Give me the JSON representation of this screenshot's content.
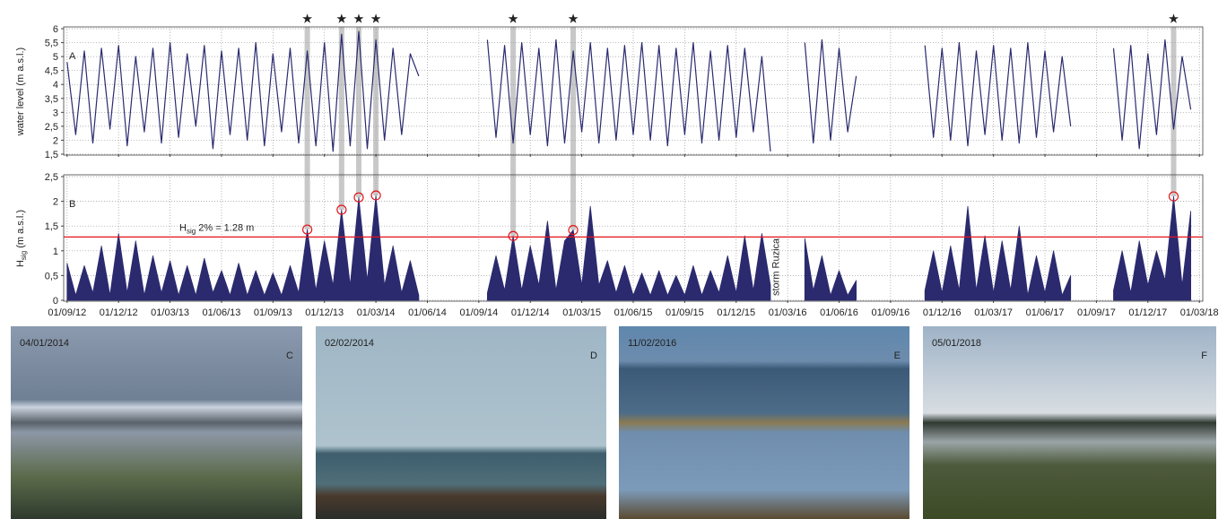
{
  "chart_data": [
    {
      "type": "line",
      "panel_label": "A",
      "ylabel": "water level (m a.s.l.)",
      "color": "#2b2a6f",
      "grid": true,
      "xlim": [
        -0.2,
        66.2
      ],
      "xticks": [
        0,
        3,
        6,
        9,
        12,
        15,
        18,
        21,
        24,
        27,
        30,
        33,
        36,
        39,
        42,
        45,
        48,
        51,
        54,
        57,
        60,
        63,
        66
      ],
      "ylim": [
        1.5,
        6
      ],
      "yticks": [
        {
          "value": 1.5,
          "label": "1,5"
        },
        2,
        {
          "value": 2.5,
          "label": "2,5"
        },
        3,
        {
          "value": 3.5,
          "label": "3,5"
        },
        4,
        {
          "value": 4.5,
          "label": "4,5"
        },
        5,
        {
          "value": 5.5,
          "label": "5,5"
        },
        6
      ],
      "x": [
        0,
        0.5,
        1,
        1.5,
        2,
        2.5,
        3,
        3.5,
        4,
        4.5,
        5,
        5.5,
        6,
        6.5,
        7,
        7.5,
        8,
        8.5,
        9,
        9.5,
        10,
        10.5,
        11,
        11.5,
        12,
        12.5,
        13,
        13.5,
        14,
        14.5,
        15,
        15.5,
        16,
        16.5,
        17,
        17.5,
        18,
        18.5,
        19,
        19.5,
        20,
        20.5,
        21,
        21.5,
        22,
        22.5,
        23,
        23.5,
        24,
        24.5,
        25,
        25.5,
        26,
        26.5,
        27,
        27.5,
        28,
        28.5,
        29,
        29.5,
        30,
        30.5,
        31,
        31.5,
        32,
        32.5,
        33,
        33.5,
        34,
        34.5,
        35,
        35.5,
        36,
        36.5,
        37,
        37.5,
        38,
        38.5,
        39,
        39.5,
        40,
        40.5,
        41,
        41.5,
        42,
        42.5,
        43,
        43.5,
        44,
        44.5,
        45,
        45.5,
        46,
        46.5,
        47,
        47.5,
        48,
        48.5,
        49,
        49.5,
        50,
        50.5,
        51,
        51.5,
        52,
        52.5,
        53,
        53.5,
        54,
        54.5,
        55,
        55.5,
        56,
        56.5,
        57,
        57.5,
        58,
        58.5,
        59,
        59.5,
        60,
        60.5,
        61,
        61.5,
        62,
        62.5,
        63,
        63.5,
        64,
        64.5,
        65,
        65.5
      ],
      "values": [
        4.8,
        2.2,
        5.2,
        1.9,
        5.3,
        2.4,
        5.4,
        1.8,
        5.0,
        2.3,
        5.3,
        1.9,
        5.5,
        2.1,
        5.1,
        2.5,
        5.4,
        1.7,
        5.2,
        2.2,
        5.3,
        2.0,
        5.5,
        1.8,
        5.1,
        2.3,
        5.3,
        1.9,
        5.2,
        1.8,
        5.5,
        1.6,
        5.8,
        1.8,
        5.9,
        1.7,
        5.6,
        2.0,
        5.3,
        2.2,
        5.1,
        4.3,
        null,
        null,
        null,
        null,
        null,
        null,
        null,
        5.6,
        2.1,
        5.4,
        1.9,
        5.5,
        2.2,
        5.3,
        1.8,
        5.6,
        1.9,
        5.2,
        2.3,
        5.5,
        1.9,
        5.3,
        2.0,
        5.4,
        2.2,
        5.5,
        2.0,
        5.4,
        1.8,
        5.3,
        2.2,
        5.5,
        1.9,
        5.2,
        2.0,
        5.4,
        2.1,
        5.3,
        2.3,
        5.0,
        1.6,
        null,
        null,
        null,
        5.5,
        1.9,
        5.6,
        2.0,
        5.3,
        2.3,
        4.3,
        null,
        null,
        null,
        null,
        null,
        null,
        null,
        5.4,
        2.1,
        5.3,
        2.0,
        5.5,
        1.8,
        5.2,
        2.2,
        5.4,
        2.0,
        5.3,
        1.9,
        5.5,
        2.1,
        5.2,
        2.3,
        5.0,
        2.5,
        null,
        null,
        null,
        null,
        5.3,
        2.0,
        5.4,
        1.7,
        5.1,
        2.2,
        5.6,
        2.4,
        5.0,
        3.1
      ]
    },
    {
      "type": "area",
      "panel_label": "B",
      "ylabel": {
        "main": "H",
        "sub": "sig",
        "rest": " (m a.s.l.)"
      },
      "color": "#2b2a6f",
      "grid": true,
      "xlim": [
        -0.2,
        66.2
      ],
      "xticks": [
        {
          "value": 0,
          "label": "01/09/12"
        },
        {
          "value": 3,
          "label": "01/12/12"
        },
        {
          "value": 6,
          "label": "01/03/13"
        },
        {
          "value": 9,
          "label": "01/06/13"
        },
        {
          "value": 12,
          "label": "01/09/13"
        },
        {
          "value": 15,
          "label": "01/12/13"
        },
        {
          "value": 18,
          "label": "01/03/14"
        },
        {
          "value": 21,
          "label": "01/06/14"
        },
        {
          "value": 24,
          "label": "01/09/14"
        },
        {
          "value": 27,
          "label": "01/12/14"
        },
        {
          "value": 30,
          "label": "01/03/15"
        },
        {
          "value": 33,
          "label": "01/06/15"
        },
        {
          "value": 36,
          "label": "01/09/15"
        },
        {
          "value": 39,
          "label": "01/12/15"
        },
        {
          "value": 42,
          "label": "01/03/16"
        },
        {
          "value": 45,
          "label": "01/06/16"
        },
        {
          "value": 48,
          "label": "01/09/16"
        },
        {
          "value": 51,
          "label": "01/12/16"
        },
        {
          "value": 54,
          "label": "01/03/17"
        },
        {
          "value": 57,
          "label": "01/06/17"
        },
        {
          "value": 60,
          "label": "01/09/17"
        },
        {
          "value": 63,
          "label": "01/12/17"
        },
        {
          "value": 66,
          "label": "01/03/18"
        }
      ],
      "ylim": [
        0,
        2.5
      ],
      "yticks": [
        0,
        {
          "value": 0.5,
          "label": "0,5"
        },
        1,
        {
          "value": 1.5,
          "label": "1,5"
        },
        2,
        {
          "value": 2.5,
          "label": "2,5"
        }
      ],
      "x": [
        0,
        0.5,
        1,
        1.5,
        2,
        2.5,
        3,
        3.5,
        4,
        4.5,
        5,
        5.5,
        6,
        6.5,
        7,
        7.5,
        8,
        8.5,
        9,
        9.5,
        10,
        10.5,
        11,
        11.5,
        12,
        12.5,
        13,
        13.5,
        14,
        14.5,
        15,
        15.5,
        16,
        16.5,
        17,
        17.5,
        18,
        18.5,
        19,
        19.5,
        20,
        20.5,
        21,
        21.5,
        22,
        22.5,
        23,
        23.5,
        24,
        24.5,
        25,
        25.5,
        26,
        26.5,
        27,
        27.5,
        28,
        28.5,
        29,
        29.5,
        30,
        30.5,
        31,
        31.5,
        32,
        32.5,
        33,
        33.5,
        34,
        34.5,
        35,
        35.5,
        36,
        36.5,
        37,
        37.5,
        38,
        38.5,
        39,
        39.5,
        40,
        40.5,
        41,
        41.5,
        42,
        42.5,
        43,
        43.5,
        44,
        44.5,
        45,
        45.5,
        46,
        46.5,
        47,
        47.5,
        48,
        48.5,
        49,
        49.5,
        50,
        50.5,
        51,
        51.5,
        52,
        52.5,
        53,
        53.5,
        54,
        54.5,
        55,
        55.5,
        56,
        56.5,
        57,
        57.5,
        58,
        58.5,
        59,
        59.5,
        60,
        60.5,
        61,
        61.5,
        62,
        62.5,
        63,
        63.5,
        64,
        64.5,
        65,
        65.5
      ],
      "values": [
        0.75,
        0.1,
        0.7,
        0.15,
        1.1,
        0.1,
        1.35,
        0.15,
        1.2,
        0.1,
        0.9,
        0.15,
        0.8,
        0.1,
        0.7,
        0.1,
        0.85,
        0.15,
        0.6,
        0.1,
        0.75,
        0.1,
        0.6,
        0.1,
        0.55,
        0.1,
        0.7,
        0.15,
        1.43,
        0.2,
        1.2,
        0.3,
        1.83,
        0.3,
        2.08,
        0.4,
        2.12,
        0.3,
        1.1,
        0.15,
        0.8,
        0.1,
        null,
        null,
        null,
        null,
        null,
        null,
        null,
        0.15,
        0.9,
        0.2,
        1.3,
        0.2,
        1.1,
        0.3,
        1.6,
        0.2,
        1.2,
        1.42,
        0.3,
        1.9,
        0.3,
        0.8,
        0.15,
        0.7,
        0.1,
        0.55,
        0.1,
        0.6,
        0.1,
        0.5,
        0.1,
        0.7,
        0.1,
        0.6,
        0.15,
        0.9,
        0.15,
        1.3,
        0.2,
        1.35,
        0.3,
        null,
        null,
        null,
        1.25,
        0.2,
        0.9,
        0.1,
        0.6,
        0.1,
        0.4,
        null,
        null,
        null,
        null,
        null,
        null,
        null,
        0.2,
        1.0,
        0.15,
        1.1,
        0.2,
        1.9,
        0.2,
        1.3,
        0.15,
        1.2,
        0.2,
        1.5,
        0.1,
        0.9,
        0.15,
        1.0,
        0.1,
        0.5,
        null,
        null,
        null,
        null,
        0.2,
        1.0,
        0.15,
        1.2,
        0.3,
        1.0,
        0.4,
        2.1,
        0.3,
        1.8
      ],
      "threshold": {
        "value": 1.28,
        "color": "#e3141b",
        "label": {
          "main": "H",
          "sub": "sig",
          "rest": " 2% = 1.28 m"
        }
      },
      "storms": [
        {
          "x": 14,
          "hsig": 1.43
        },
        {
          "x": 16,
          "hsig": 1.83
        },
        {
          "x": 17,
          "hsig": 2.08
        },
        {
          "x": 18,
          "hsig": 2.12
        },
        {
          "x": 26,
          "hsig": 1.3
        },
        {
          "x": 29.5,
          "hsig": 1.42
        },
        {
          "x": 64.5,
          "hsig": 2.1
        }
      ],
      "annotation": {
        "text": "storm Ruzica",
        "x": 41.5
      }
    }
  ],
  "photos": [
    {
      "date": "04/01/2014",
      "letter": "C"
    },
    {
      "date": "02/02/2014",
      "letter": "D"
    },
    {
      "date": "11/02/2016",
      "letter": "E"
    },
    {
      "date": "05/01/2018",
      "letter": "F"
    }
  ]
}
